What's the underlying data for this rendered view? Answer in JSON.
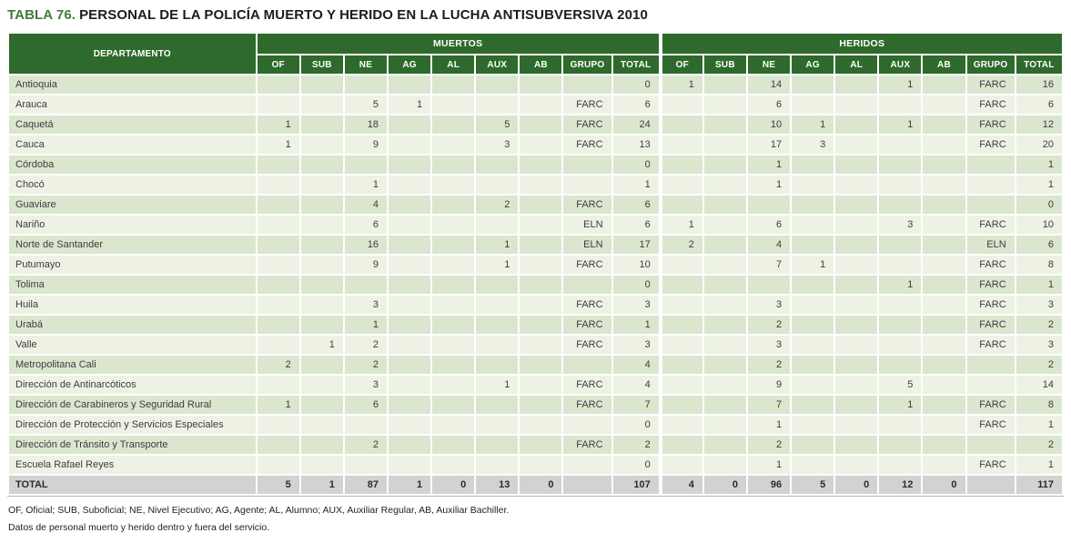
{
  "title": {
    "prefix": "TABLA 76.",
    "text": "PERSONAL DE LA POLICÍA MUERTO Y HERIDO EN LA LUCHA ANTISUBVERSIVA 2010"
  },
  "colors": {
    "header_green": "#2e6a2c",
    "title_green": "#3e7d35",
    "row_odd": "#dbe6cf",
    "row_even": "#edf2e4",
    "total_row_gray": "#d2d2d2"
  },
  "table": {
    "dept_header": "DEPARTAMENTO",
    "group_headers": [
      "MUERTOS",
      "HERIDOS"
    ],
    "sub_headers": [
      "OF",
      "SUB",
      "NE",
      "AG",
      "AL",
      "AUX",
      "AB",
      "GRUPO",
      "TOTAL"
    ],
    "rows": [
      {
        "dept": "Antioquia",
        "muertos": [
          "",
          "",
          "",
          "",
          "",
          "",
          "",
          "",
          "0"
        ],
        "heridos": [
          "1",
          "",
          "14",
          "",
          "",
          "1",
          "",
          "FARC",
          "16"
        ]
      },
      {
        "dept": "Arauca",
        "muertos": [
          "",
          "",
          "5",
          "1",
          "",
          "",
          "",
          "FARC",
          "6"
        ],
        "heridos": [
          "",
          "",
          "6",
          "",
          "",
          "",
          "",
          "FARC",
          "6"
        ]
      },
      {
        "dept": "Caquetá",
        "muertos": [
          "1",
          "",
          "18",
          "",
          "",
          "5",
          "",
          "FARC",
          "24"
        ],
        "heridos": [
          "",
          "",
          "10",
          "1",
          "",
          "1",
          "",
          "FARC",
          "12"
        ]
      },
      {
        "dept": "Cauca",
        "muertos": [
          "1",
          "",
          "9",
          "",
          "",
          "3",
          "",
          "FARC",
          "13"
        ],
        "heridos": [
          "",
          "",
          "17",
          "3",
          "",
          "",
          "",
          "FARC",
          "20"
        ]
      },
      {
        "dept": "Córdoba",
        "muertos": [
          "",
          "",
          "",
          "",
          "",
          "",
          "",
          "",
          "0"
        ],
        "heridos": [
          "",
          "",
          "1",
          "",
          "",
          "",
          "",
          "",
          "1"
        ]
      },
      {
        "dept": "Chocó",
        "muertos": [
          "",
          "",
          "1",
          "",
          "",
          "",
          "",
          "",
          "1"
        ],
        "heridos": [
          "",
          "",
          "1",
          "",
          "",
          "",
          "",
          "",
          "1"
        ]
      },
      {
        "dept": "Guaviare",
        "muertos": [
          "",
          "",
          "4",
          "",
          "",
          "2",
          "",
          "FARC",
          "6"
        ],
        "heridos": [
          "",
          "",
          "",
          "",
          "",
          "",
          "",
          "",
          "0"
        ]
      },
      {
        "dept": "Nariño",
        "muertos": [
          "",
          "",
          "6",
          "",
          "",
          "",
          "",
          "ELN",
          "6"
        ],
        "heridos": [
          "1",
          "",
          "6",
          "",
          "",
          "3",
          "",
          "FARC",
          "10"
        ]
      },
      {
        "dept": "Norte de Santander",
        "muertos": [
          "",
          "",
          "16",
          "",
          "",
          "1",
          "",
          "ELN",
          "17"
        ],
        "heridos": [
          "2",
          "",
          "4",
          "",
          "",
          "",
          "",
          "ELN",
          "6"
        ]
      },
      {
        "dept": "Putumayo",
        "muertos": [
          "",
          "",
          "9",
          "",
          "",
          "1",
          "",
          "FARC",
          "10"
        ],
        "heridos": [
          "",
          "",
          "7",
          "1",
          "",
          "",
          "",
          "FARC",
          "8"
        ]
      },
      {
        "dept": "Tolima",
        "muertos": [
          "",
          "",
          "",
          "",
          "",
          "",
          "",
          "",
          "0"
        ],
        "heridos": [
          "",
          "",
          "",
          "",
          "",
          "1",
          "",
          "FARC",
          "1"
        ]
      },
      {
        "dept": "Huila",
        "muertos": [
          "",
          "",
          "3",
          "",
          "",
          "",
          "",
          "FARC",
          "3"
        ],
        "heridos": [
          "",
          "",
          "3",
          "",
          "",
          "",
          "",
          "FARC",
          "3"
        ]
      },
      {
        "dept": "Urabá",
        "muertos": [
          "",
          "",
          "1",
          "",
          "",
          "",
          "",
          "FARC",
          "1"
        ],
        "heridos": [
          "",
          "",
          "2",
          "",
          "",
          "",
          "",
          "FARC",
          "2"
        ]
      },
      {
        "dept": "Valle",
        "muertos": [
          "",
          "1",
          "2",
          "",
          "",
          "",
          "",
          "FARC",
          "3"
        ],
        "heridos": [
          "",
          "",
          "3",
          "",
          "",
          "",
          "",
          "FARC",
          "3"
        ]
      },
      {
        "dept": "Metropolitana Cali",
        "muertos": [
          "2",
          "",
          "2",
          "",
          "",
          "",
          "",
          "",
          "4"
        ],
        "heridos": [
          "",
          "",
          "2",
          "",
          "",
          "",
          "",
          "",
          "2"
        ]
      },
      {
        "dept": "Dirección de Antinarcóticos",
        "muertos": [
          "",
          "",
          "3",
          "",
          "",
          "1",
          "",
          "FARC",
          "4"
        ],
        "heridos": [
          "",
          "",
          "9",
          "",
          "",
          "5",
          "",
          "",
          "14"
        ]
      },
      {
        "dept": "Dirección de Carabineros y Seguridad Rural",
        "muertos": [
          "1",
          "",
          "6",
          "",
          "",
          "",
          "",
          "FARC",
          "7"
        ],
        "heridos": [
          "",
          "",
          "7",
          "",
          "",
          "1",
          "",
          "FARC",
          "8"
        ]
      },
      {
        "dept": "Dirección de Protección y Servicios Especiales",
        "muertos": [
          "",
          "",
          "",
          "",
          "",
          "",
          "",
          "",
          "0"
        ],
        "heridos": [
          "",
          "",
          "1",
          "",
          "",
          "",
          "",
          "FARC",
          "1"
        ]
      },
      {
        "dept": "Dirección de Tránsito y Transporte",
        "muertos": [
          "",
          "",
          "2",
          "",
          "",
          "",
          "",
          "FARC",
          "2"
        ],
        "heridos": [
          "",
          "",
          "2",
          "",
          "",
          "",
          "",
          "",
          "2"
        ]
      },
      {
        "dept": "Escuela Rafael Reyes",
        "muertos": [
          "",
          "",
          "",
          "",
          "",
          "",
          "",
          "",
          "0"
        ],
        "heridos": [
          "",
          "",
          "1",
          "",
          "",
          "",
          "",
          "FARC",
          "1"
        ]
      }
    ],
    "total_row": {
      "dept": "TOTAL",
      "muertos": [
        "5",
        "1",
        "87",
        "1",
        "0",
        "13",
        "0",
        "",
        "107"
      ],
      "heridos": [
        "4",
        "0",
        "96",
        "5",
        "0",
        "12",
        "0",
        "",
        "117"
      ]
    }
  },
  "footnotes": [
    "OF, Oficial; SUB, Suboficial; NE, Nivel Ejecutivo; AG, Agente; AL, Alumno; AUX, Auxiliar Regular, AB, Auxiliar Bachiller.",
    "Datos de personal muerto y herido dentro y fuera del servicio."
  ]
}
